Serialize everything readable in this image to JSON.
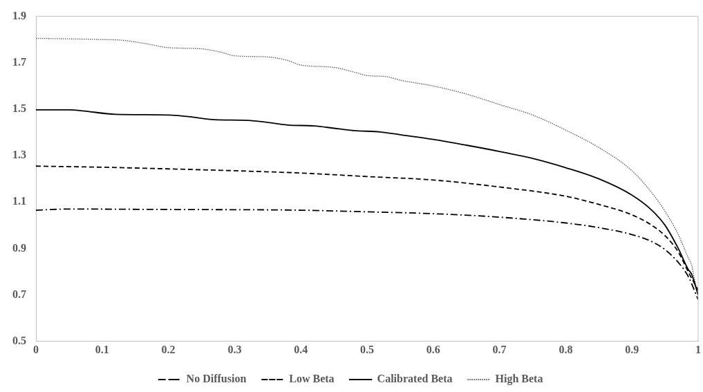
{
  "chart_data": {
    "type": "line",
    "xlim": [
      0,
      1
    ],
    "xticks": [
      0,
      0.1,
      0.2,
      0.3,
      0.4,
      0.5,
      0.6,
      0.7,
      0.8,
      0.9,
      1
    ],
    "ylim": [
      0.5,
      1.9
    ],
    "yticks": [
      0.5,
      0.7,
      0.9,
      1.1,
      1.3,
      1.5,
      1.7,
      1.9
    ],
    "grid": false,
    "legend": "bottom",
    "marker": "none",
    "series": [
      {
        "name": "No Diffusion",
        "color": "#000000",
        "line_style": "dashdot",
        "x": [
          0,
          0.05,
          0.2,
          0.4,
          0.5,
          0.6,
          0.7,
          0.8,
          0.85,
          0.9,
          0.93,
          0.95,
          0.97,
          0.985,
          1
        ],
        "values": [
          1.065,
          1.07,
          1.068,
          1.065,
          1.058,
          1.05,
          1.035,
          1.01,
          0.99,
          0.96,
          0.93,
          0.895,
          0.84,
          0.78,
          0.68
        ]
      },
      {
        "name": "Low Beta",
        "color": "#000000",
        "line_style": "dashed",
        "x": [
          0,
          0.1,
          0.2,
          0.3,
          0.4,
          0.5,
          0.6,
          0.7,
          0.8,
          0.85,
          0.9,
          0.93,
          0.95,
          0.97,
          0.985,
          1
        ],
        "values": [
          1.255,
          1.25,
          1.243,
          1.235,
          1.225,
          1.21,
          1.195,
          1.165,
          1.125,
          1.09,
          1.045,
          1.0,
          0.955,
          0.885,
          0.8,
          0.72
        ]
      },
      {
        "name": "Calibrated Beta",
        "color": "#000000",
        "line_style": "solid",
        "x": [
          0,
          0.05,
          0.07,
          0.12,
          0.2,
          0.23,
          0.27,
          0.32,
          0.35,
          0.38,
          0.42,
          0.45,
          0.48,
          0.52,
          0.55,
          0.6,
          0.65,
          0.7,
          0.75,
          0.8,
          0.85,
          0.9,
          0.93,
          0.95,
          0.97,
          0.985,
          0.99,
          1
        ],
        "values": [
          1.497,
          1.497,
          1.493,
          1.478,
          1.475,
          1.468,
          1.455,
          1.452,
          1.443,
          1.432,
          1.428,
          1.418,
          1.408,
          1.402,
          1.39,
          1.37,
          1.345,
          1.318,
          1.288,
          1.248,
          1.2,
          1.13,
          1.065,
          1.0,
          0.9,
          0.81,
          0.79,
          0.7
        ]
      },
      {
        "name": "High Beta",
        "color": "#555555",
        "line_style": "dotted",
        "x": [
          0,
          0.05,
          0.1,
          0.13,
          0.17,
          0.2,
          0.25,
          0.28,
          0.3,
          0.35,
          0.38,
          0.4,
          0.45,
          0.48,
          0.5,
          0.53,
          0.55,
          0.6,
          0.65,
          0.7,
          0.75,
          0.8,
          0.85,
          0.9,
          0.93,
          0.95,
          0.97,
          0.985,
          0.99,
          0.995,
          1
        ],
        "values": [
          1.805,
          1.803,
          1.8,
          1.797,
          1.78,
          1.765,
          1.76,
          1.745,
          1.73,
          1.725,
          1.71,
          1.69,
          1.68,
          1.66,
          1.645,
          1.64,
          1.625,
          1.6,
          1.565,
          1.52,
          1.475,
          1.41,
          1.335,
          1.235,
          1.14,
          1.06,
          0.96,
          0.86,
          0.83,
          0.76,
          0.7
        ]
      }
    ]
  }
}
